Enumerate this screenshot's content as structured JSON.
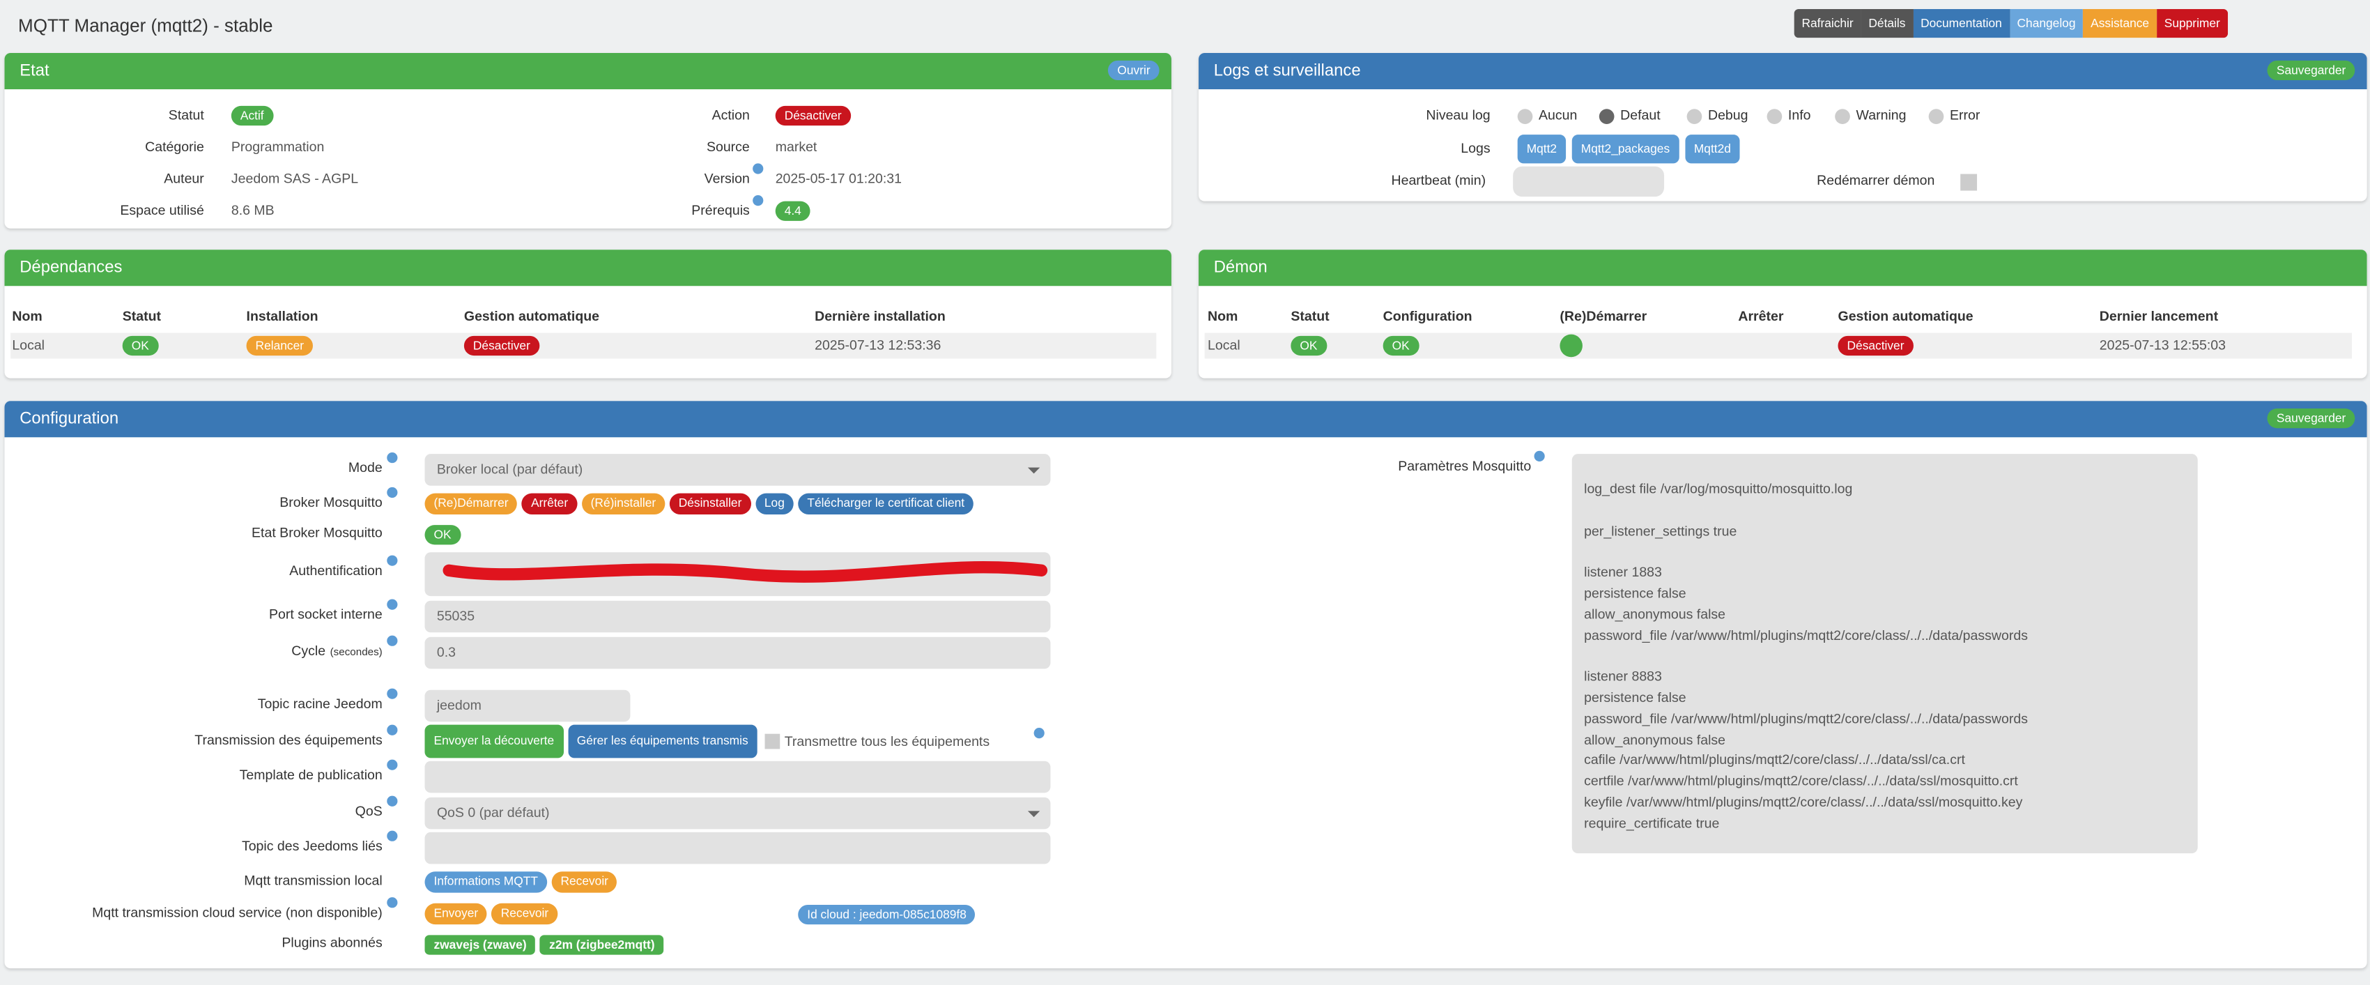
{
  "header": {
    "title": "MQTT Manager (mqtt2) - stable",
    "buttons": [
      "Rafraichir",
      "Détails",
      "Documentation",
      "Changelog",
      "Assistance",
      "Supprimer"
    ],
    "button_colors": [
      "#555555",
      "#555555",
      "#3a78b5",
      "#6aa6dc",
      "#f0a030",
      "#c9151e"
    ]
  },
  "etat": {
    "title": "Etat",
    "button": "Ouvrir",
    "left": [
      {
        "label": "Statut",
        "badge": "Actif"
      },
      {
        "label": "Catégorie",
        "value": "Programmation"
      },
      {
        "label": "Auteur",
        "value": "Jeedom SAS - AGPL"
      },
      {
        "label": "Espace utilisé",
        "value": "8.6 MB"
      }
    ],
    "right": [
      {
        "label": "Action",
        "badge": "Désactiver"
      },
      {
        "label": "Source",
        "value": "market"
      },
      {
        "label": "Version",
        "value": "2025-05-17 01:20:31"
      },
      {
        "label": "Prérequis",
        "badge": "4.4"
      }
    ]
  },
  "logs": {
    "title": "Logs et surveillance",
    "button": "Sauvegarder",
    "level_label": "Niveau log",
    "levels": [
      "Aucun",
      "Defaut",
      "Debug",
      "Info",
      "Warning",
      "Error"
    ],
    "selected_level": "Defaut",
    "logs_label": "Logs",
    "logs": [
      "Mqtt2",
      "Mqtt2_packages",
      "Mqtt2d"
    ],
    "heartbeat_label": "Heartbeat (min)",
    "restart_label": "Redémarrer démon"
  },
  "dependances": {
    "title": "Dépendances",
    "headers": [
      "Nom",
      "Statut",
      "Installation",
      "Gestion automatique",
      "Dernière installation"
    ],
    "row": {
      "name": "Local",
      "status": "OK",
      "install": "Relancer",
      "auto": "Désactiver",
      "last": "2025-07-13 12:53:36"
    }
  },
  "demon": {
    "title": "Démon",
    "headers": [
      "Nom",
      "Statut",
      "Configuration",
      "(Re)Démarrer",
      "Arrêter",
      "Gestion automatique",
      "Dernier lancement"
    ],
    "row": {
      "name": "Local",
      "status": "OK",
      "config": "OK",
      "auto": "Désactiver",
      "last": "2025-07-13 12:55:03"
    }
  },
  "config": {
    "title": "Configuration",
    "button": "Sauvegarder",
    "fields": [
      {
        "label": "Mode",
        "select": "Broker local (par défaut)"
      },
      {
        "label": "Broker Mosquitto",
        "buttons": [
          "(Re)Démarrer",
          "Arrêter",
          "(Ré)installer",
          "Désinstaller",
          "Log",
          "Télécharger le certificat client"
        ],
        "button_colors": [
          "#f0a030",
          "#c9151e",
          "#f0a030",
          "#c9151e",
          "#3a78b5",
          "#3a78b5"
        ]
      },
      {
        "label": "Etat Broker Mosquitto",
        "badge": "OK"
      },
      {
        "label": "Authentification",
        "redacted": true
      },
      {
        "label": "Port socket interne",
        "input": "55035"
      },
      {
        "label": "Cycle",
        "unit": "(secondes)",
        "input": "0.3"
      },
      {
        "label": "Topic racine Jeedom",
        "input": "jeedom"
      },
      {
        "label": "Transmission des équipements",
        "buttons": [
          "Envoyer la découverte",
          "Gérer les équipements transmis"
        ],
        "button_colors": [
          "#4cae4c",
          "#3a78b5"
        ],
        "checkbox": "Transmettre tous les équipements"
      },
      {
        "label": "Template de publication"
      },
      {
        "label": "QoS",
        "select": "QoS 0 (par défaut)"
      },
      {
        "label": "Topic des Jeedoms liés"
      },
      {
        "label": "Mqtt transmission local",
        "buttons": [
          "Informations MQTT",
          "Recevoir"
        ],
        "button_colors": [
          "#5b9bd5",
          "#f0a030"
        ]
      },
      {
        "label": "Mqtt transmission cloud service (non disponible)",
        "buttons": [
          "Envoyer",
          "Recevoir"
        ],
        "button_colors": [
          "#f0a030",
          "#f0a030"
        ],
        "cloud_id": "Id cloud : jeedom-085c1089f8"
      },
      {
        "label": "Plugins abonnés",
        "tags": [
          "zwavejs (zwave)",
          "z2m (zigbee2mqtt)"
        ]
      }
    ],
    "mosquitto": {
      "label": "Paramètres Mosquitto",
      "blocks": [
        [
          "log_dest file /var/log/mosquitto/mosquitto.log"
        ],
        [
          "per_listener_settings true"
        ],
        [
          "listener 1883",
          "persistence false",
          "allow_anonymous false",
          "password_file /var/www/html/plugins/mqtt2/core/class/../../data/passwords"
        ],
        [
          "listener 8883",
          "persistence false",
          "password_file /var/www/html/plugins/mqtt2/core/class/../../data/passwords",
          "allow_anonymous false",
          "cafile /var/www/html/plugins/mqtt2/core/class/../../data/ssl/ca.crt",
          "certfile /var/www/html/plugins/mqtt2/core/class/../../data/ssl/mosquitto.crt",
          "keyfile /var/www/html/plugins/mqtt2/core/class/../../data/ssl/mosquitto.key",
          "require_certificate true"
        ]
      ]
    }
  }
}
